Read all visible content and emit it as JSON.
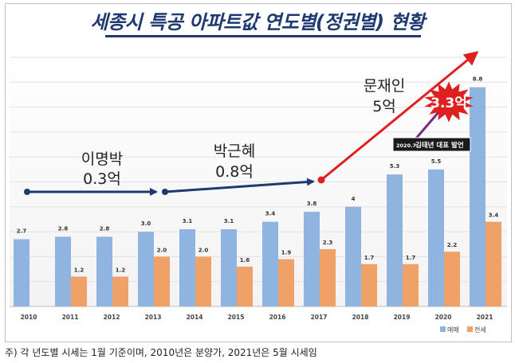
{
  "title": "세종시 특공 아파트값 연도별(정권별) 현황",
  "footnote": "주) 각 년도별 시세는 1월 기준이며, 2010년은 분양가, 2021년은 5월 시세임",
  "colors": {
    "sale": "#8fb4e0",
    "jeonse": "#f0a168",
    "arrow_blue": "#1f3a70",
    "arrow_red": "#e02020",
    "arrow_purple": "#7a2a80",
    "burst": "#e02020",
    "title": "#1f3a70"
  },
  "annotations": {
    "lee": {
      "name": "이명박",
      "value": "0.3억"
    },
    "park": {
      "name": "박근혜",
      "value": "0.8억"
    },
    "moon": {
      "name": "문재인",
      "value": "5억"
    },
    "burst": "3.3억",
    "kim_date": "2020.7.",
    "kim_text": "김태년 대표 발언"
  },
  "chart_data": {
    "type": "bar",
    "categories": [
      "2010",
      "2011",
      "2012",
      "2013",
      "2014",
      "2015",
      "2016",
      "2017",
      "2018",
      "2019",
      "2020",
      "2021"
    ],
    "series": [
      {
        "name": "매매",
        "values": [
          2.7,
          2.8,
          2.8,
          3.0,
          3.1,
          3.1,
          3.4,
          3.8,
          4,
          5.3,
          5.5,
          8.8
        ],
        "labels": [
          "2.7",
          "2.8",
          "2.8",
          "3.0",
          "3.1",
          "3.1",
          "3.4",
          "3.8",
          "4",
          "5.3",
          "5.5",
          "8.8"
        ]
      },
      {
        "name": "전세",
        "values": [
          null,
          1.2,
          1.2,
          2.0,
          2.0,
          1.6,
          1.9,
          2.3,
          1.7,
          1.7,
          2.2,
          3.4
        ],
        "labels": [
          "",
          "1.2",
          "1.2",
          "2.0",
          "2.0",
          "1.6",
          "1.9",
          "2.3",
          "1.7",
          "1.7",
          "2.2",
          "3.4"
        ]
      }
    ],
    "ylim": [
      0,
      10.5
    ],
    "grid": true,
    "legend_position": "bottom-right"
  }
}
